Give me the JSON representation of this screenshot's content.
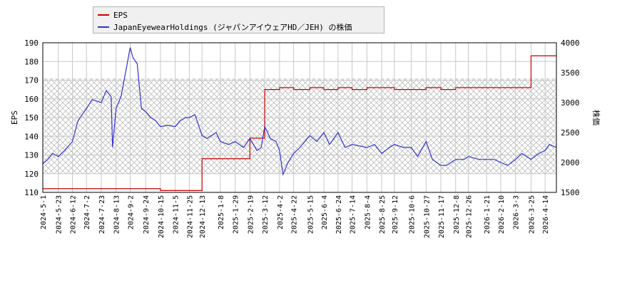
{
  "legend": {
    "eps_label": "EPS",
    "price_label": "JapanEyewearHoldings (ジャパンアイウェアHD／JEH) の株価"
  },
  "colors": {
    "eps": "#cc0000",
    "price": "#3333cc",
    "grid": "#c8c8c8",
    "hatch": "#b0b0b0",
    "axis": "#000000"
  },
  "chart_data": {
    "type": "line",
    "x_tick_labels": [
      "2024-5-1",
      "2024-5-23",
      "2024-6-12",
      "2024-7-2",
      "2024-7-23",
      "2024-8-13",
      "2024-9-2",
      "2024-9-24",
      "2024-10-15",
      "2024-11-5",
      "2024-11-25",
      "2024-12-13",
      "2025-1-8",
      "2025-1-29",
      "2025-2-19",
      "2025-3-12",
      "2025-4-2",
      "2025-4-22",
      "2025-5-15",
      "2025-6-4",
      "2025-6-24",
      "2025-7-14",
      "2025-8-4",
      "2025-8-25",
      "2025-9-12",
      "2025-10-6",
      "2025-10-27",
      "2025-11-17",
      "2025-12-8",
      "2025-12-26",
      "2026-1-21",
      "2026-2-10",
      "2026-3-3",
      "2026-3-25",
      "2026-4-14"
    ],
    "x_range": [
      "2024-5-1",
      "2026-4-30"
    ],
    "y_left": {
      "label": "EPS",
      "range": [
        110,
        190
      ],
      "ticks": [
        110,
        120,
        130,
        140,
        150,
        160,
        170,
        180,
        190
      ]
    },
    "y_right": {
      "label": "株価",
      "range": [
        1500,
        4000
      ],
      "ticks": [
        1500,
        2000,
        2500,
        3000,
        3500,
        4000
      ]
    },
    "hatched_band_eps": [
      120,
      171
    ],
    "series": [
      {
        "name": "EPS",
        "axis": "left",
        "color": "#cc0000",
        "points": [
          [
            "2024-5-1",
            112
          ],
          [
            "2024-5-23",
            112
          ],
          [
            "2024-6-12",
            112
          ],
          [
            "2024-7-2",
            112
          ],
          [
            "2024-7-23",
            112
          ],
          [
            "2024-8-13",
            112
          ],
          [
            "2024-9-2",
            112
          ],
          [
            "2024-9-24",
            112
          ],
          [
            "2024-10-15",
            111
          ],
          [
            "2024-11-25",
            111
          ],
          [
            "2024-12-12",
            111
          ],
          [
            "2024-12-13",
            128
          ],
          [
            "2025-1-8",
            128
          ],
          [
            "2025-1-29",
            128
          ],
          [
            "2025-2-18",
            128
          ],
          [
            "2025-2-19",
            139
          ],
          [
            "2025-3-11",
            139
          ],
          [
            "2025-3-12",
            165
          ],
          [
            "2025-4-2",
            166
          ],
          [
            "2025-4-22",
            165
          ],
          [
            "2025-5-15",
            166
          ],
          [
            "2025-6-4",
            165
          ],
          [
            "2025-6-24",
            166
          ],
          [
            "2025-7-14",
            165
          ],
          [
            "2025-8-4",
            166
          ],
          [
            "2025-8-25",
            166
          ],
          [
            "2025-9-12",
            165
          ],
          [
            "2025-10-6",
            165
          ],
          [
            "2025-10-27",
            166
          ],
          [
            "2025-11-17",
            165
          ],
          [
            "2025-12-8",
            166
          ],
          [
            "2025-12-26",
            166
          ],
          [
            "2026-1-21",
            166
          ],
          [
            "2026-2-10",
            166
          ],
          [
            "2026-3-3",
            166
          ],
          [
            "2026-3-24",
            166
          ],
          [
            "2026-3-25",
            183
          ],
          [
            "2026-4-14",
            183
          ],
          [
            "2026-4-30",
            183
          ]
        ]
      },
      {
        "name": "JapanEyewearHoldings (ジャパンアイウェアHD／JEH) の株価",
        "axis": "right",
        "color": "#3333cc",
        "points": [
          [
            "2024-5-1",
            1980
          ],
          [
            "2024-5-8",
            2050
          ],
          [
            "2024-5-15",
            2150
          ],
          [
            "2024-5-23",
            2100
          ],
          [
            "2024-6-1",
            2200
          ],
          [
            "2024-6-12",
            2350
          ],
          [
            "2024-6-20",
            2700
          ],
          [
            "2024-7-2",
            2900
          ],
          [
            "2024-7-10",
            3050
          ],
          [
            "2024-7-23",
            3000
          ],
          [
            "2024-7-30",
            3200
          ],
          [
            "2024-8-6",
            3100
          ],
          [
            "2024-8-8",
            2250
          ],
          [
            "2024-8-13",
            2900
          ],
          [
            "2024-8-20",
            3100
          ],
          [
            "2024-8-28",
            3600
          ],
          [
            "2024-9-2",
            3920
          ],
          [
            "2024-9-6",
            3750
          ],
          [
            "2024-9-12",
            3650
          ],
          [
            "2024-9-18",
            2900
          ],
          [
            "2024-9-24",
            2850
          ],
          [
            "2024-10-1",
            2750
          ],
          [
            "2024-10-8",
            2700
          ],
          [
            "2024-10-15",
            2600
          ],
          [
            "2024-10-25",
            2620
          ],
          [
            "2024-11-5",
            2600
          ],
          [
            "2024-11-12",
            2700
          ],
          [
            "2024-11-20",
            2750
          ],
          [
            "2024-11-25",
            2750
          ],
          [
            "2024-12-3",
            2800
          ],
          [
            "2024-12-13",
            2450
          ],
          [
            "2024-12-20",
            2400
          ],
          [
            "2025-1-2",
            2500
          ],
          [
            "2025-1-8",
            2350
          ],
          [
            "2025-1-20",
            2300
          ],
          [
            "2025-1-29",
            2350
          ],
          [
            "2025-2-10",
            2250
          ],
          [
            "2025-2-19",
            2400
          ],
          [
            "2025-3-1",
            2200
          ],
          [
            "2025-3-7",
            2250
          ],
          [
            "2025-3-12",
            2600
          ],
          [
            "2025-3-20",
            2400
          ],
          [
            "2025-3-28",
            2350
          ],
          [
            "2025-4-2",
            2200
          ],
          [
            "2025-4-7",
            1800
          ],
          [
            "2025-4-14",
            2000
          ],
          [
            "2025-4-22",
            2150
          ],
          [
            "2025-5-1",
            2250
          ],
          [
            "2025-5-15",
            2450
          ],
          [
            "2025-5-25",
            2350
          ],
          [
            "2025-6-4",
            2500
          ],
          [
            "2025-6-12",
            2300
          ],
          [
            "2025-6-24",
            2500
          ],
          [
            "2025-7-4",
            2250
          ],
          [
            "2025-7-14",
            2300
          ],
          [
            "2025-8-4",
            2250
          ],
          [
            "2025-8-15",
            2300
          ],
          [
            "2025-8-25",
            2150
          ],
          [
            "2025-9-5",
            2250
          ],
          [
            "2025-9-12",
            2300
          ],
          [
            "2025-9-25",
            2250
          ],
          [
            "2025-10-6",
            2250
          ],
          [
            "2025-10-15",
            2100
          ],
          [
            "2025-10-27",
            2350
          ],
          [
            "2025-11-5",
            2050
          ],
          [
            "2025-11-17",
            1950
          ],
          [
            "2025-11-25",
            1950
          ],
          [
            "2025-12-8",
            2050
          ],
          [
            "2025-12-20",
            2050
          ],
          [
            "2025-12-26",
            2100
          ],
          [
            "2026-1-10",
            2050
          ],
          [
            "2026-1-21",
            2050
          ],
          [
            "2026-2-1",
            2050
          ],
          [
            "2026-2-10",
            2000
          ],
          [
            "2026-2-20",
            1950
          ],
          [
            "2026-3-3",
            2050
          ],
          [
            "2026-3-12",
            2150
          ],
          [
            "2026-3-25",
            2050
          ],
          [
            "2026-4-5",
            2150
          ],
          [
            "2026-4-14",
            2200
          ],
          [
            "2026-4-20",
            2300
          ],
          [
            "2026-4-30",
            2250
          ]
        ]
      }
    ]
  }
}
